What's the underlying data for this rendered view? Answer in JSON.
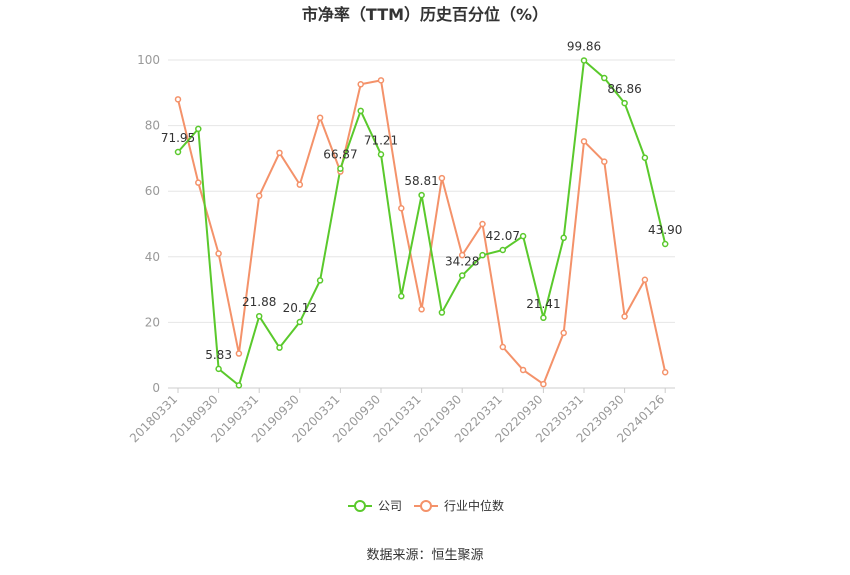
{
  "chart_data": {
    "type": "line",
    "title": "市净率（TTM）历史百分位（%）",
    "source": "数据来源：恒生聚源",
    "ylim": [
      0,
      100
    ],
    "yticks": [
      0,
      20,
      40,
      60,
      80,
      100
    ],
    "x_tick_labels": [
      "20180331",
      "20180930",
      "20190331",
      "20190930",
      "20200331",
      "20200930",
      "20210331",
      "20210930",
      "20220331",
      "20220930",
      "20230331",
      "20230930",
      "20240126"
    ],
    "x": [
      "20180331",
      "20180630",
      "20180930",
      "20181231",
      "20190331",
      "20190630",
      "20190930",
      "20191231",
      "20200331",
      "20200630",
      "20200930",
      "20201231",
      "20210331",
      "20210630",
      "20210930",
      "20211231",
      "20220331",
      "20220630",
      "20220930",
      "20221231",
      "20230331",
      "20230630",
      "20230930",
      "20231231",
      "20240126"
    ],
    "grid": true,
    "legend_position": "bottom",
    "series": [
      {
        "name": "公司",
        "color": "#5ac92c",
        "values": [
          71.95,
          79,
          5.83,
          0.8,
          21.88,
          12.3,
          20.12,
          32.8,
          66.87,
          84.5,
          71.21,
          28,
          58.81,
          23,
          34.28,
          40.5,
          42.07,
          46.3,
          21.41,
          45.8,
          99.86,
          94.5,
          86.86,
          70.2,
          43.9
        ],
        "labels": [
          "71.95",
          "",
          "5.83",
          "",
          "21.88",
          "",
          "20.12",
          "",
          "66.87",
          "",
          "71.21",
          "",
          "58.81",
          "",
          "34.28",
          "",
          "42.07",
          "",
          "21.41",
          "",
          "99.86",
          "",
          "86.86",
          "",
          "43.90"
        ]
      },
      {
        "name": "行业中位数",
        "color": "#f4926a",
        "values": [
          88,
          62.6,
          41,
          10.5,
          58.6,
          71.7,
          62,
          82.4,
          66,
          92.6,
          93.8,
          54.8,
          24,
          64,
          40.5,
          50,
          12.5,
          5.5,
          1.2,
          16.8,
          75.2,
          69,
          21.8,
          33,
          4.8
        ]
      }
    ]
  }
}
